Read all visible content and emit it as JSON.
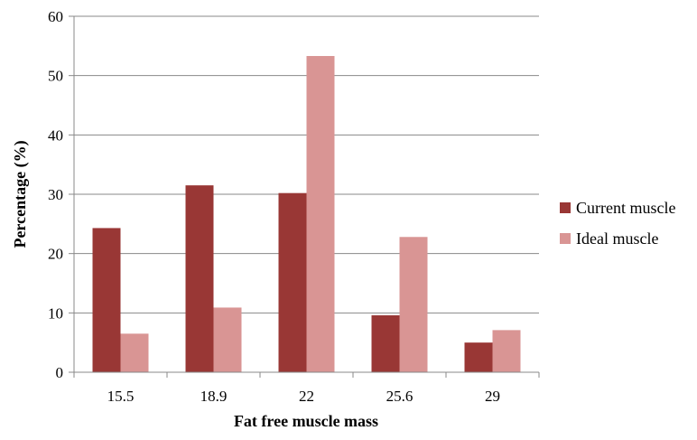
{
  "chart_data": {
    "type": "bar",
    "title": "",
    "xlabel": "Fat free muscle mass",
    "ylabel": "Percentage (%)",
    "ylim": [
      0,
      60
    ],
    "yticks": [
      0,
      10,
      20,
      30,
      40,
      50,
      60
    ],
    "grid": true,
    "legend_position": "right",
    "categories": [
      "15.5",
      "18.9",
      "22",
      "25.6",
      "29"
    ],
    "series": [
      {
        "name": "Current muscle",
        "color": "#993735",
        "values": [
          24.3,
          31.5,
          30.2,
          9.6,
          5.0
        ]
      },
      {
        "name": "Ideal muscle",
        "color": "#D99594",
        "values": [
          6.5,
          10.9,
          53.3,
          22.8,
          7.1
        ]
      }
    ]
  }
}
